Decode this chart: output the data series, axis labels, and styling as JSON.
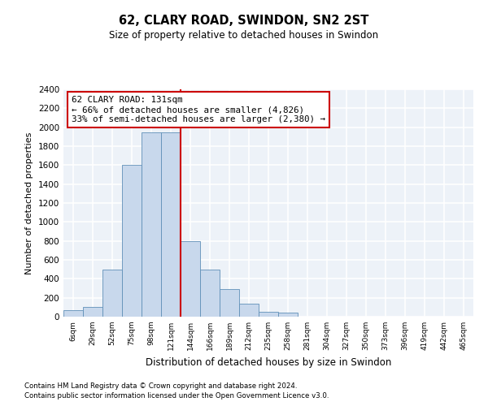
{
  "title": "62, CLARY ROAD, SWINDON, SN2 2ST",
  "subtitle": "Size of property relative to detached houses in Swindon",
  "xlabel": "Distribution of detached houses by size in Swindon",
  "ylabel": "Number of detached properties",
  "categories": [
    "6sqm",
    "29sqm",
    "52sqm",
    "75sqm",
    "98sqm",
    "121sqm",
    "144sqm",
    "166sqm",
    "189sqm",
    "212sqm",
    "235sqm",
    "258sqm",
    "281sqm",
    "304sqm",
    "327sqm",
    "350sqm",
    "373sqm",
    "396sqm",
    "419sqm",
    "442sqm",
    "465sqm"
  ],
  "values": [
    70,
    100,
    500,
    1600,
    1950,
    1950,
    800,
    500,
    290,
    140,
    55,
    40,
    0,
    0,
    0,
    0,
    0,
    0,
    0,
    0,
    0
  ],
  "bar_color": "#c8d8ec",
  "bar_edgecolor": "#6090b8",
  "vline_color": "#cc0000",
  "annotation_text": "62 CLARY ROAD: 131sqm\n← 66% of detached houses are smaller (4,826)\n33% of semi-detached houses are larger (2,380) →",
  "annotation_box_color": "#ffffff",
  "annotation_box_edgecolor": "#cc0000",
  "ylim": [
    0,
    2400
  ],
  "yticks": [
    0,
    200,
    400,
    600,
    800,
    1000,
    1200,
    1400,
    1600,
    1800,
    2000,
    2200,
    2400
  ],
  "background_color": "#edf2f8",
  "grid_color": "#ffffff",
  "footer1": "Contains HM Land Registry data © Crown copyright and database right 2024.",
  "footer2": "Contains public sector information licensed under the Open Government Licence v3.0."
}
